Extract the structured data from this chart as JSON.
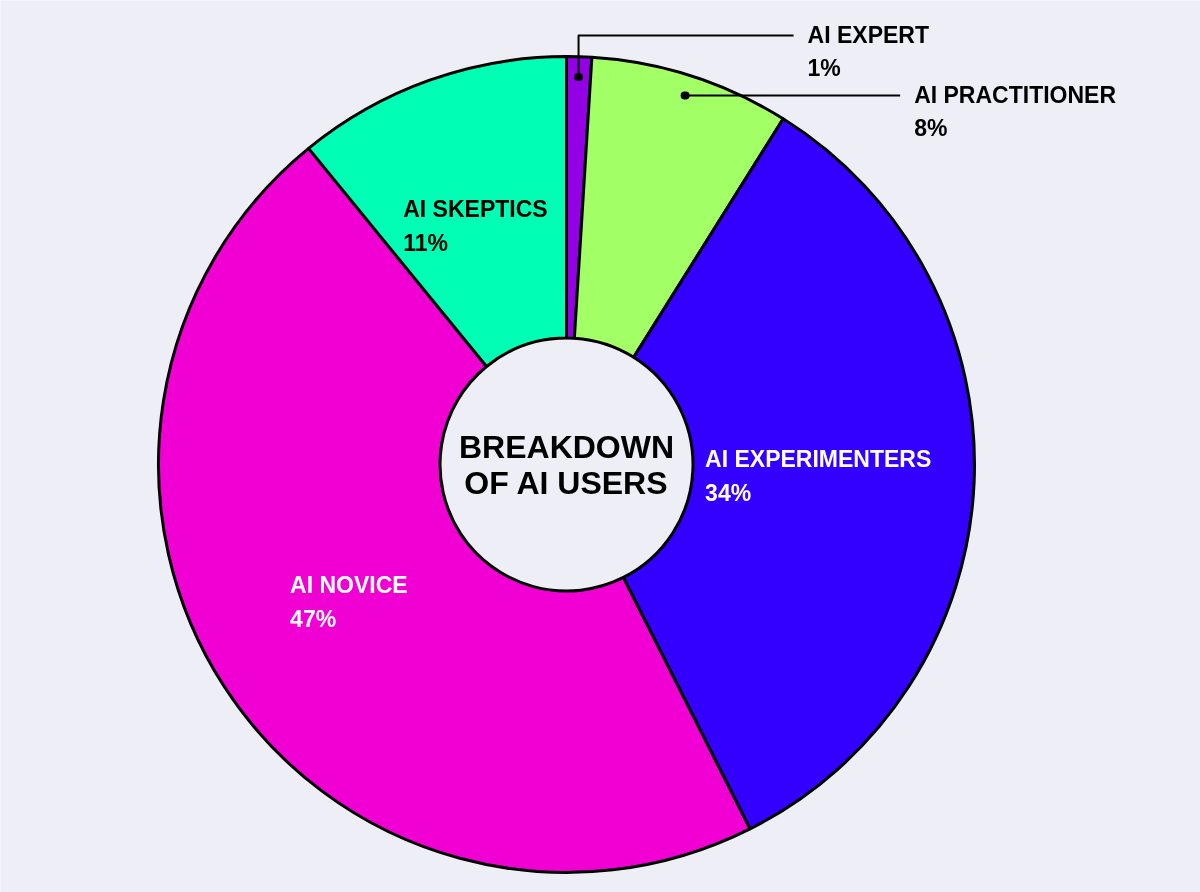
{
  "chart_data": {
    "type": "donut",
    "title": "BREAKDOWN OF AI USERS",
    "categories": [
      "AI EXPERT",
      "AI PRACTITIONER",
      "AI EXPERIMENTERS",
      "AI NOVICE",
      "AI SKEPTICS"
    ],
    "values": [
      1,
      8,
      34,
      47,
      11
    ],
    "value_labels": [
      "1%",
      "8%",
      "34%",
      "47%",
      "11%"
    ],
    "colors": [
      "#9400e6",
      "#a3ff66",
      "#3300ff",
      "#f000d2",
      "#00ffb4"
    ]
  }
}
